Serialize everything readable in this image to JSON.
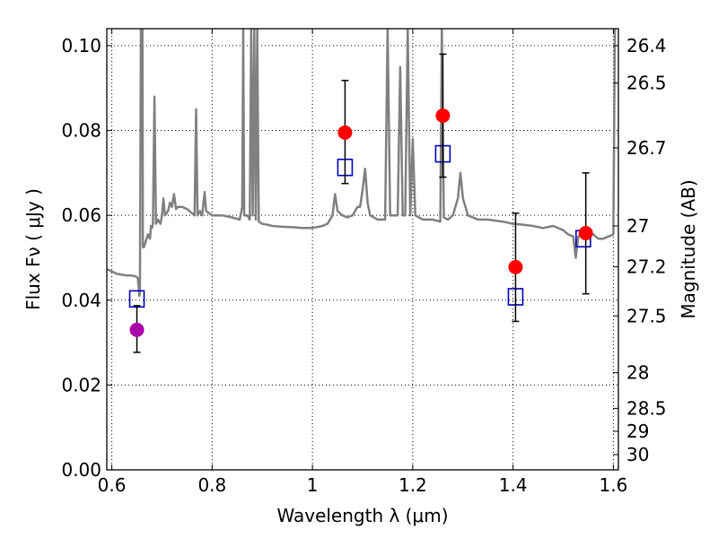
{
  "chart_data": {
    "type": "scatter",
    "xlabel": "Wavelength  λ (μm)",
    "ylabel": "Flux  Fν  ( μJy )",
    "y2label": "Magnitude (AB)",
    "xlim": [
      0.59,
      1.61
    ],
    "ylim": [
      0.0,
      0.104
    ],
    "grid": true,
    "x_ticks": [
      0.6,
      0.8,
      1.0,
      1.2,
      1.4,
      1.6
    ],
    "x_tick_labels": [
      "0.6",
      "0.8",
      "1",
      "1.2",
      "1.4",
      "1.6"
    ],
    "y_ticks": [
      0.0,
      0.02,
      0.04,
      0.06,
      0.08,
      0.1
    ],
    "y_tick_labels": [
      "0.00",
      "0.02",
      "0.04",
      "0.06",
      "0.08",
      "0.10"
    ],
    "mag_ticks": [
      {
        "label": "26.4",
        "flux": 0.1
      },
      {
        "label": "26.5",
        "flux": 0.0912
      },
      {
        "label": "26.7",
        "flux": 0.0759
      },
      {
        "label": "27",
        "flux": 0.0575
      },
      {
        "label": "27.2",
        "flux": 0.0479
      },
      {
        "label": "27.5",
        "flux": 0.0363
      },
      {
        "label": "28",
        "flux": 0.0229
      },
      {
        "label": "28.5",
        "flux": 0.0145
      },
      {
        "label": "29",
        "flux": 0.0091
      },
      {
        "label": "30",
        "flux": 0.0036
      }
    ],
    "series": [
      {
        "kind": "model",
        "color": "#808080",
        "points": [
          [
            0.59,
            0.0473
          ],
          [
            0.6,
            0.0468
          ],
          [
            0.61,
            0.0462
          ],
          [
            0.62,
            0.046
          ],
          [
            0.63,
            0.0458
          ],
          [
            0.64,
            0.0458
          ],
          [
            0.648,
            0.0456
          ],
          [
            0.652,
            0.0452
          ],
          [
            0.655,
            0.041
          ],
          [
            0.656,
            0.042
          ],
          [
            0.658,
            0.108
          ],
          [
            0.661,
            0.108
          ],
          [
            0.662,
            0.0525
          ],
          [
            0.664,
            0.0525
          ],
          [
            0.668,
            0.054
          ],
          [
            0.672,
            0.0555
          ],
          [
            0.676,
            0.0545
          ],
          [
            0.678,
            0.0575
          ],
          [
            0.68,
            0.057
          ],
          [
            0.682,
            0.058
          ],
          [
            0.685,
            0.088
          ],
          [
            0.688,
            0.058
          ],
          [
            0.692,
            0.059
          ],
          [
            0.697,
            0.058
          ],
          [
            0.7,
            0.06
          ],
          [
            0.703,
            0.064
          ],
          [
            0.706,
            0.06
          ],
          [
            0.712,
            0.061
          ],
          [
            0.716,
            0.063
          ],
          [
            0.72,
            0.062
          ],
          [
            0.724,
            0.065
          ],
          [
            0.728,
            0.0615
          ],
          [
            0.732,
            0.062
          ],
          [
            0.74,
            0.062
          ],
          [
            0.75,
            0.0615
          ],
          [
            0.76,
            0.0605
          ],
          [
            0.765,
            0.06
          ],
          [
            0.768,
            0.085
          ],
          [
            0.771,
            0.06
          ],
          [
            0.776,
            0.061
          ],
          [
            0.78,
            0.06
          ],
          [
            0.785,
            0.0655
          ],
          [
            0.788,
            0.061
          ],
          [
            0.8,
            0.06
          ],
          [
            0.82,
            0.06
          ],
          [
            0.84,
            0.0595
          ],
          [
            0.855,
            0.059
          ],
          [
            0.86,
            0.062
          ],
          [
            0.862,
            0.108
          ],
          [
            0.864,
            0.06
          ],
          [
            0.87,
            0.06
          ],
          [
            0.875,
            0.059
          ],
          [
            0.878,
            0.108
          ],
          [
            0.881,
            0.06
          ],
          [
            0.884,
            0.108
          ],
          [
            0.887,
            0.059
          ],
          [
            0.89,
            0.108
          ],
          [
            0.893,
            0.0585
          ],
          [
            0.9,
            0.058
          ],
          [
            0.91,
            0.0578
          ],
          [
            0.92,
            0.0575
          ],
          [
            0.94,
            0.0573
          ],
          [
            0.96,
            0.0572
          ],
          [
            0.98,
            0.057
          ],
          [
            1.0,
            0.057
          ],
          [
            1.02,
            0.0575
          ],
          [
            1.03,
            0.058
          ],
          [
            1.04,
            0.06
          ],
          [
            1.045,
            0.065
          ],
          [
            1.05,
            0.061
          ],
          [
            1.06,
            0.06
          ],
          [
            1.07,
            0.0595
          ],
          [
            1.08,
            0.06
          ],
          [
            1.09,
            0.062
          ],
          [
            1.095,
            0.062
          ],
          [
            1.1,
            0.066
          ],
          [
            1.105,
            0.071
          ],
          [
            1.11,
            0.063
          ],
          [
            1.115,
            0.06
          ],
          [
            1.13,
            0.059
          ],
          [
            1.145,
            0.059
          ],
          [
            1.15,
            0.108
          ],
          [
            1.155,
            0.06
          ],
          [
            1.17,
            0.06
          ],
          [
            1.175,
            0.095
          ],
          [
            1.18,
            0.06
          ],
          [
            1.185,
            0.06
          ],
          [
            1.19,
            0.108
          ],
          [
            1.195,
            0.06
          ],
          [
            1.2,
            0.078
          ],
          [
            1.205,
            0.06
          ],
          [
            1.22,
            0.059
          ],
          [
            1.24,
            0.059
          ],
          [
            1.255,
            0.0585
          ],
          [
            1.258,
            0.108
          ],
          [
            1.262,
            0.0595
          ],
          [
            1.27,
            0.059
          ],
          [
            1.28,
            0.06
          ],
          [
            1.29,
            0.064
          ],
          [
            1.295,
            0.07
          ],
          [
            1.3,
            0.064
          ],
          [
            1.31,
            0.06
          ],
          [
            1.33,
            0.059
          ],
          [
            1.35,
            0.059
          ],
          [
            1.38,
            0.0585
          ],
          [
            1.4,
            0.058
          ],
          [
            1.42,
            0.0578
          ],
          [
            1.44,
            0.0575
          ],
          [
            1.46,
            0.057
          ],
          [
            1.48,
            0.0575
          ],
          [
            1.5,
            0.0565
          ],
          [
            1.51,
            0.0555
          ],
          [
            1.52,
            0.055
          ],
          [
            1.525,
            0.05
          ],
          [
            1.53,
            0.055
          ],
          [
            1.545,
            0.056
          ],
          [
            1.56,
            0.0555
          ],
          [
            1.57,
            0.0545
          ],
          [
            1.58,
            0.0545
          ],
          [
            1.59,
            0.055
          ],
          [
            1.6,
            0.0555
          ],
          [
            1.603,
            0.108
          ]
        ]
      },
      {
        "kind": "open-square",
        "color": "#0000bb",
        "points": [
          [
            0.65,
            0.0403
          ],
          [
            1.065,
            0.0713
          ],
          [
            1.26,
            0.0745
          ],
          [
            1.405,
            0.0408
          ],
          [
            1.54,
            0.0545
          ]
        ]
      },
      {
        "kind": "filled-circle",
        "color": "#ff0000",
        "points": [
          {
            "x": 1.065,
            "y": 0.0795,
            "lo": 0.0675,
            "hi": 0.0918
          },
          {
            "x": 1.26,
            "y": 0.0835,
            "lo": 0.069,
            "hi": 0.098
          },
          {
            "x": 1.405,
            "y": 0.0478,
            "lo": 0.035,
            "hi": 0.0605
          },
          {
            "x": 1.545,
            "y": 0.0558,
            "lo": 0.0415,
            "hi": 0.07
          }
        ]
      },
      {
        "kind": "filled-circle",
        "color": "#aa00aa",
        "points": [
          {
            "x": 0.65,
            "y": 0.033,
            "lo": 0.0277,
            "hi": 0.0387
          }
        ]
      }
    ]
  }
}
